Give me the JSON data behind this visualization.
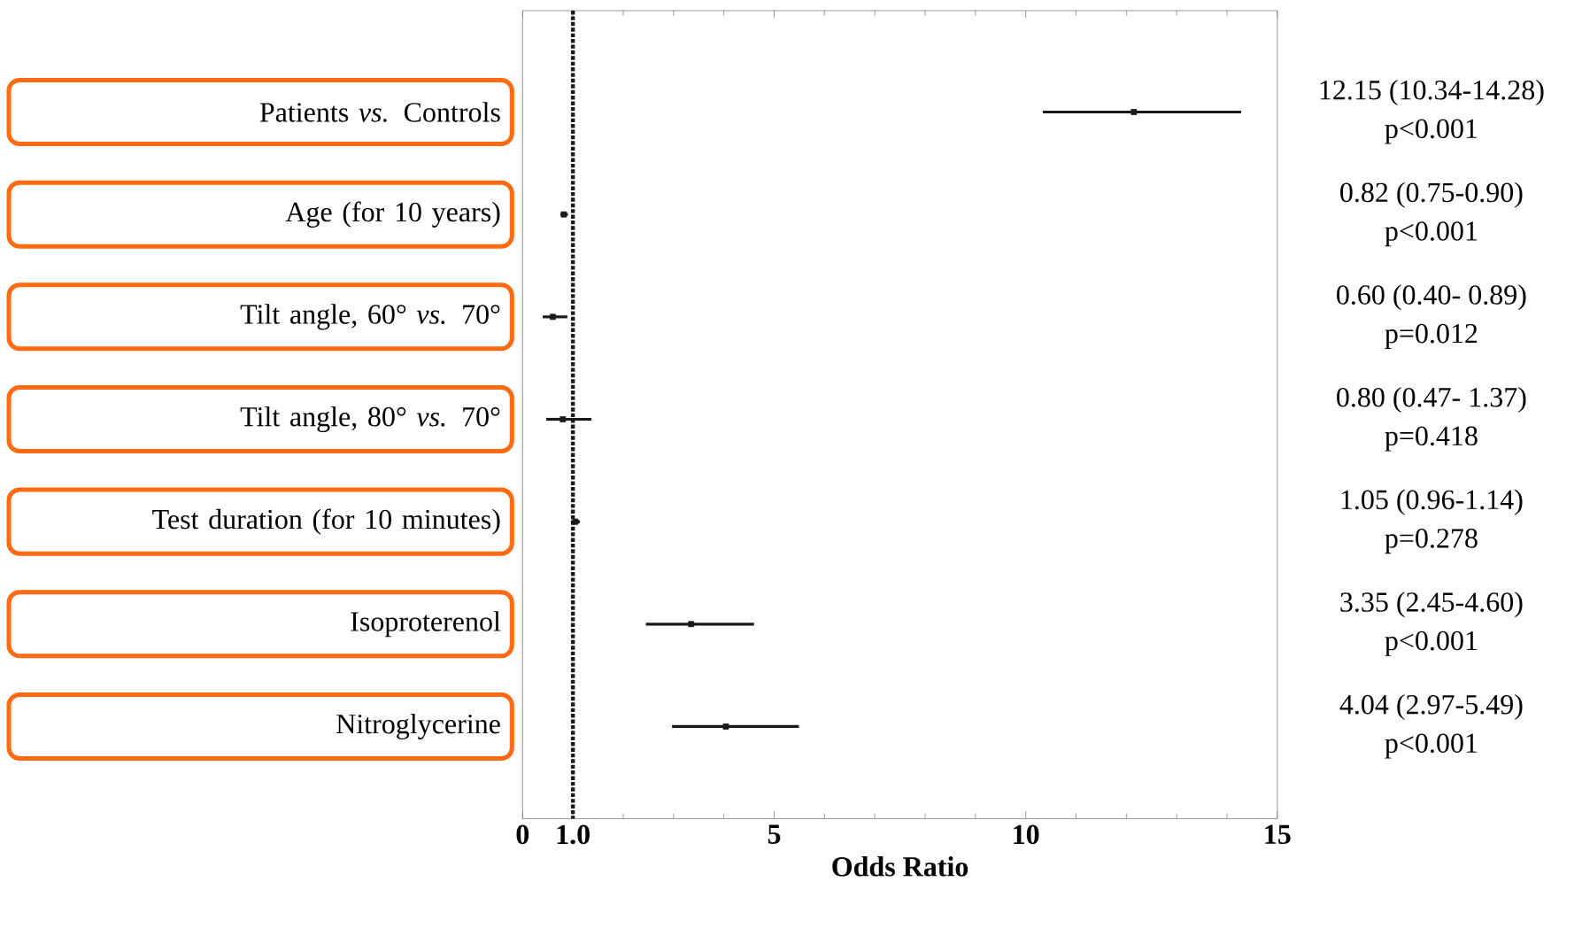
{
  "chart_data": {
    "type": "scatter",
    "orientation": "horizontal",
    "marker": "square",
    "color": "#1a1a1a",
    "categories": [
      "Patients *vs.* Controls",
      "Age (for 10 years)",
      "Tilt angle, 60° *vs.* 70°",
      "Tilt angle, 80° *vs.* 70°",
      "Test duration (for 10 minutes)",
      "Isoproterenol",
      "Nitroglycerine"
    ],
    "values": [
      12.15,
      0.82,
      0.6,
      0.8,
      1.05,
      3.35,
      4.04
    ],
    "errors": [
      [
        10.34,
        14.28
      ],
      [
        0.75,
        0.9
      ],
      [
        0.4,
        0.89
      ],
      [
        0.47,
        1.37
      ],
      [
        0.96,
        1.14
      ],
      [
        2.45,
        4.6
      ],
      [
        2.97,
        5.49
      ]
    ],
    "annotations": [
      "12.15 (10.34-14.28)",
      "p<0.001",
      "0.82 (0.75-0.90)",
      "p<0.001",
      "0.60 (0.40- 0.89)",
      "p=0.012",
      "0.80 (0.47- 1.37)",
      "p=0.418",
      "1.05 (0.96-1.14)",
      "p=0.278",
      "3.35 (2.45-4.60)",
      "p<0.001",
      "4.04 (2.97-5.49)",
      "p<0.001"
    ],
    "xlabel": "Odds Ratio",
    "xlim": [
      0,
      15
    ],
    "xticks": [
      0,
      {
        "value": 1,
        "label": "1.0"
      },
      5,
      10,
      15
    ],
    "ref_lines": [
      {
        "axis": "x",
        "value": 1,
        "line_style": "dotted",
        "color": "#1a1a1a"
      }
    ]
  }
}
